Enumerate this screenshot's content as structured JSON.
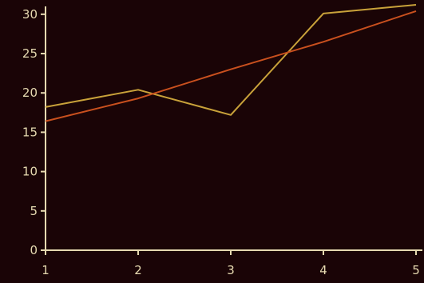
{
  "chart_data": {
    "type": "line",
    "x": [
      1,
      2,
      3,
      4,
      5
    ],
    "xlim": [
      1,
      5
    ],
    "ylim": [
      0,
      31
    ],
    "xticks": [
      "1",
      "2",
      "3",
      "4",
      "5"
    ],
    "yticks": [
      "0",
      "5",
      "10",
      "15",
      "20",
      "25",
      "30"
    ],
    "grid": false,
    "legend": "none",
    "series": [
      {
        "values": [
          18.2,
          20.4,
          17.2,
          30.1,
          31.2
        ],
        "color": "#c9a23a"
      },
      {
        "values": [
          16.4,
          19.3,
          23.0,
          26.5,
          30.4
        ],
        "color": "#c9501e"
      }
    ],
    "colors": {
      "background": "#1a0406",
      "axis": "#e6d9b0"
    }
  }
}
